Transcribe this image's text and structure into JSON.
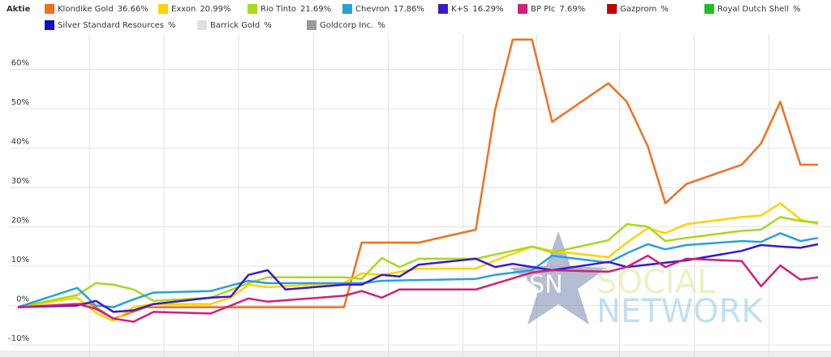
{
  "chart_data": {
    "type": "line",
    "legend_title": "Aktie",
    "xlim": [
      0,
      100
    ],
    "ylim": [
      -11,
      69
    ],
    "xticks": [
      8.9,
      18.2,
      27.5,
      36.8,
      46.1,
      55.4,
      64.6,
      74.9,
      84.2,
      93.5
    ],
    "yticks": [
      {
        "value": -10,
        "label": "-10%"
      },
      {
        "value": 0,
        "label": "0%"
      },
      {
        "value": 10,
        "label": "10%"
      },
      {
        "value": 20,
        "label": "20%"
      },
      {
        "value": 30,
        "label": "30%"
      },
      {
        "value": 40,
        "label": "40%"
      },
      {
        "value": 50,
        "label": "50%"
      },
      {
        "value": 60,
        "label": "60%"
      }
    ],
    "grid": true,
    "series": [
      {
        "name": "Klondike Gold",
        "label": "36.66%",
        "color": "#f07020",
        "x": [
          0,
          8.9,
          11.9,
          16.0,
          40.6,
          42.8,
          49.9,
          57.0,
          59.4,
          61.6,
          64.0,
          66.5,
          73.5,
          75.8,
          78.4,
          80.6,
          83.2,
          90.1,
          92.5,
          94.9,
          97.4,
          99.6
        ],
        "values": [
          -0.4,
          0.6,
          -3.3,
          -0.4,
          -0.4,
          16.0,
          16.0,
          19.3,
          49.8,
          67.6,
          67.6,
          46.7,
          56.5,
          51.8,
          40.5,
          26.0,
          30.9,
          35.8,
          41.2,
          51.8,
          35.8,
          35.8
        ]
      },
      {
        "name": "Exxon",
        "label": "20.99%",
        "color": "#ffd200",
        "x": [
          0,
          7.4,
          9.7,
          11.9,
          14.4,
          16.9,
          24.0,
          26.5,
          28.7,
          31.1,
          40.6,
          42.8,
          45.3,
          49.9,
          57.0,
          59.4,
          64.0,
          66.5,
          73.5,
          75.8,
          78.4,
          80.6,
          83.2,
          90.1,
          92.5,
          94.9,
          97.4,
          99.6
        ],
        "values": [
          -0.4,
          2.0,
          -1.8,
          -3.9,
          -0.4,
          0.4,
          0.4,
          2.0,
          5.3,
          4.7,
          5.7,
          8.2,
          7.8,
          9.4,
          9.4,
          11.5,
          15.0,
          13.9,
          12.3,
          16.0,
          19.7,
          18.4,
          20.7,
          22.5,
          22.9,
          26.0,
          21.9,
          20.7
        ]
      },
      {
        "name": "Rio Tinto",
        "label": "21.69%",
        "color": "#a8d820",
        "x": [
          0,
          7.4,
          9.7,
          11.9,
          14.4,
          16.9,
          24.0,
          28.7,
          31.1,
          40.6,
          42.8,
          45.3,
          47.5,
          49.9,
          57.0,
          64.0,
          66.5,
          73.5,
          75.8,
          78.4,
          80.6,
          83.2,
          90.1,
          92.5,
          94.9,
          97.4,
          99.6
        ],
        "values": [
          -0.4,
          2.7,
          5.7,
          5.3,
          4.1,
          1.2,
          2.0,
          5.7,
          7.2,
          7.2,
          6.8,
          12.1,
          9.8,
          11.9,
          11.9,
          15.0,
          13.5,
          16.6,
          20.7,
          20.1,
          16.4,
          17.2,
          19.0,
          19.3,
          22.5,
          21.5,
          21.1
        ]
      },
      {
        "name": "Chevron",
        "label": "17.86%",
        "color": "#2aa0d8",
        "x": [
          0,
          7.4,
          9.7,
          11.9,
          14.4,
          16.9,
          24.0,
          28.7,
          31.1,
          40.6,
          42.8,
          45.3,
          57.0,
          59.4,
          64.0,
          66.5,
          73.5,
          75.8,
          78.4,
          80.6,
          83.2,
          90.1,
          92.5,
          94.9,
          97.4,
          99.6
        ],
        "values": [
          -0.4,
          4.5,
          0,
          -0.4,
          1.6,
          3.3,
          3.7,
          6.3,
          5.7,
          5.7,
          5.7,
          6.3,
          6.8,
          7.8,
          9.0,
          12.7,
          10.9,
          13.3,
          15.6,
          14.3,
          15.4,
          16.4,
          16.2,
          18.4,
          16.4,
          17.2
        ]
      },
      {
        "name": "K+S",
        "label": "16.29%",
        "color": "#3a1ac8",
        "x": [
          0,
          7.4,
          9.7,
          11.9,
          14.4,
          16.9,
          24.0,
          26.5,
          28.7,
          31.1,
          33.3,
          40.6,
          42.8,
          45.3,
          47.5,
          49.9,
          57.0,
          59.4,
          61.6,
          66.5,
          73.5,
          75.8,
          83.2,
          90.1,
          92.5,
          94.9,
          97.4,
          99.6
        ],
        "values": [
          -0.4,
          0,
          1.2,
          -1.6,
          -1.2,
          0.4,
          2.0,
          2.3,
          7.8,
          9.0,
          4.1,
          5.3,
          5.3,
          7.8,
          7.4,
          10.4,
          11.9,
          9.8,
          10.6,
          9.0,
          11.1,
          9.8,
          11.5,
          13.9,
          15.4,
          15.0,
          14.7,
          15.6
        ]
      },
      {
        "name": "BP Plc",
        "label": "7.69%",
        "color": "#d0207a",
        "x": [
          0,
          7.4,
          9.7,
          11.9,
          14.4,
          16.9,
          24.0,
          28.7,
          31.1,
          40.6,
          42.8,
          45.3,
          47.5,
          57.0,
          64.0,
          66.5,
          73.5,
          75.8,
          78.4,
          80.6,
          83.2,
          90.1,
          92.5,
          94.9,
          97.4,
          99.6
        ],
        "values": [
          -0.4,
          0.4,
          -0.8,
          -3.3,
          -4.1,
          -1.6,
          -2.0,
          1.8,
          1.0,
          2.5,
          3.7,
          2.0,
          4.1,
          4.1,
          8.4,
          9.0,
          8.6,
          9.8,
          12.7,
          9.8,
          11.9,
          11.3,
          4.9,
          10.2,
          6.6,
          7.2
        ]
      },
      {
        "name": "Gazprom",
        "label": "%",
        "color": "#c00000"
      },
      {
        "name": "Royal Dutch Shell",
        "label": "%",
        "color": "#20c020"
      },
      {
        "name": "Silver Standard Resources",
        "label": "%",
        "color": "#1010c0"
      },
      {
        "name": "Barrick Gold",
        "label": "%",
        "color": "#e0e0e0"
      },
      {
        "name": "Goldcorp Inc.",
        "label": "%",
        "color": "#999999"
      }
    ],
    "watermark": {
      "short": "BSN",
      "line1": "SOCIAL",
      "line2": "NETWORK"
    }
  }
}
